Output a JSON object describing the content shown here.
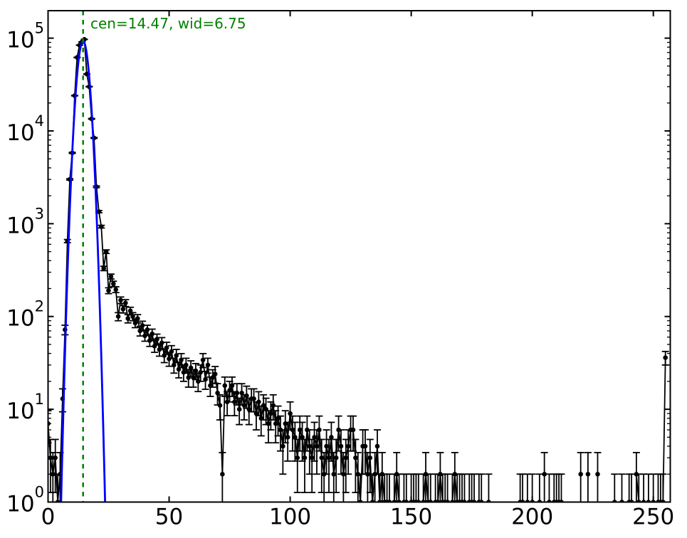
{
  "chart_data": {
    "type": "scatter",
    "title": "",
    "xlabel": "",
    "ylabel": "",
    "grid": false,
    "legend": null,
    "xlim": [
      0,
      257
    ],
    "ylim_log10": [
      0,
      5.296
    ],
    "x_ticks": [
      0,
      50,
      100,
      150,
      200,
      250
    ],
    "x_tick_labels": [
      "0",
      "50",
      "100",
      "150",
      "200",
      "250"
    ],
    "y_tick_base": "10",
    "y_tick_exponents": [
      "0",
      "1",
      "2",
      "3",
      "4",
      "5"
    ],
    "y_minor_mantissas": [
      2,
      3,
      4,
      5,
      6,
      7,
      8,
      9
    ],
    "axis_color": "#000000",
    "marker_color": "#000000",
    "error_model": "poisson_sqrt",
    "points": [
      [
        0,
        7
      ],
      [
        1,
        3
      ],
      [
        2,
        2
      ],
      [
        3,
        3
      ],
      [
        4,
        1
      ],
      [
        5,
        2
      ],
      [
        6,
        13
      ],
      [
        7,
        72
      ],
      [
        8,
        650
      ],
      [
        9,
        3000
      ],
      [
        10,
        5800
      ],
      [
        11,
        24000
      ],
      [
        12,
        62000
      ],
      [
        13,
        84000
      ],
      [
        14,
        91000
      ],
      [
        15,
        97000
      ],
      [
        16,
        41000
      ],
      [
        17,
        30000
      ],
      [
        18,
        13500
      ],
      [
        19,
        8400
      ],
      [
        20,
        2500
      ],
      [
        21,
        1350
      ],
      [
        22,
        930
      ],
      [
        23,
        330
      ],
      [
        24,
        500
      ],
      [
        25,
        190
      ],
      [
        26,
        270
      ],
      [
        27,
        225
      ],
      [
        28,
        195
      ],
      [
        29,
        100
      ],
      [
        30,
        150
      ],
      [
        31,
        120
      ],
      [
        32,
        140
      ],
      [
        33,
        95
      ],
      [
        34,
        115
      ],
      [
        35,
        100
      ],
      [
        36,
        85
      ],
      [
        37,
        95
      ],
      [
        38,
        70
      ],
      [
        39,
        80
      ],
      [
        40,
        62
      ],
      [
        41,
        72
      ],
      [
        42,
        55
      ],
      [
        43,
        65
      ],
      [
        44,
        48
      ],
      [
        45,
        57
      ],
      [
        46,
        44
      ],
      [
        47,
        52
      ],
      [
        48,
        38
      ],
      [
        49,
        46
      ],
      [
        50,
        35
      ],
      [
        51,
        42
      ],
      [
        52,
        30
      ],
      [
        53,
        38
      ],
      [
        54,
        27
      ],
      [
        55,
        34
      ],
      [
        56,
        25
      ],
      [
        57,
        30
      ],
      [
        58,
        22
      ],
      [
        59,
        28
      ],
      [
        60,
        22
      ],
      [
        61,
        26
      ],
      [
        62,
        20
      ],
      [
        63,
        25
      ],
      [
        64,
        34
      ],
      [
        65,
        21
      ],
      [
        66,
        30
      ],
      [
        67,
        18
      ],
      [
        68,
        22
      ],
      [
        69,
        24
      ],
      [
        70,
        15
      ],
      [
        71,
        11
      ],
      [
        72,
        2
      ],
      [
        73,
        18
      ],
      [
        74,
        12
      ],
      [
        75,
        16
      ],
      [
        76,
        18
      ],
      [
        77,
        12
      ],
      [
        78,
        15
      ],
      [
        79,
        10
      ],
      [
        80,
        15
      ],
      [
        81,
        11
      ],
      [
        82,
        14
      ],
      [
        83,
        10
      ],
      [
        84,
        13
      ],
      [
        85,
        13
      ],
      [
        86,
        9
      ],
      [
        87,
        12
      ],
      [
        88,
        8
      ],
      [
        89,
        11
      ],
      [
        90,
        10
      ],
      [
        91,
        7
      ],
      [
        92,
        9
      ],
      [
        93,
        11
      ],
      [
        94,
        7
      ],
      [
        95,
        8
      ],
      [
        96,
        6
      ],
      [
        97,
        4
      ],
      [
        98,
        7
      ],
      [
        99,
        5
      ],
      [
        100,
        9
      ],
      [
        101,
        6
      ],
      [
        102,
        5
      ],
      [
        103,
        3
      ],
      [
        104,
        6
      ],
      [
        105,
        5
      ],
      [
        106,
        3
      ],
      [
        107,
        6
      ],
      [
        108,
        4
      ],
      [
        109,
        3
      ],
      [
        110,
        5
      ],
      [
        111,
        4
      ],
      [
        112,
        6
      ],
      [
        113,
        3
      ],
      [
        114,
        2
      ],
      [
        115,
        4
      ],
      [
        116,
        3
      ],
      [
        117,
        5
      ],
      [
        118,
        2
      ],
      [
        119,
        3
      ],
      [
        120,
        6
      ],
      [
        121,
        4
      ],
      [
        122,
        2
      ],
      [
        123,
        3
      ],
      [
        124,
        4
      ],
      [
        125,
        6
      ],
      [
        126,
        6
      ],
      [
        127,
        3
      ],
      [
        128,
        2
      ],
      [
        129,
        1
      ],
      [
        130,
        4
      ],
      [
        131,
        4
      ],
      [
        132,
        2
      ],
      [
        133,
        3
      ],
      [
        134,
        1
      ],
      [
        135,
        2
      ],
      [
        136,
        4
      ],
      [
        137,
        1
      ],
      [
        138,
        2
      ],
      [
        139,
        1
      ],
      [
        140,
        1
      ],
      [
        141,
        1
      ],
      [
        143,
        1
      ],
      [
        144,
        2
      ],
      [
        145,
        1
      ],
      [
        147,
        1
      ],
      [
        148,
        1
      ],
      [
        150,
        1
      ],
      [
        151,
        1
      ],
      [
        152,
        1
      ],
      [
        153,
        1
      ],
      [
        155,
        1
      ],
      [
        156,
        2
      ],
      [
        157,
        1
      ],
      [
        158,
        1
      ],
      [
        160,
        1
      ],
      [
        161,
        1
      ],
      [
        162,
        2
      ],
      [
        163,
        1
      ],
      [
        164,
        1
      ],
      [
        165,
        1
      ],
      [
        167,
        1
      ],
      [
        168,
        2
      ],
      [
        169,
        1
      ],
      [
        170,
        1
      ],
      [
        171,
        1
      ],
      [
        172,
        1
      ],
      [
        174,
        1
      ],
      [
        175,
        1
      ],
      [
        176,
        1
      ],
      [
        178,
        1
      ],
      [
        179,
        1
      ],
      [
        182,
        1
      ],
      [
        195,
        1
      ],
      [
        196,
        1
      ],
      [
        198,
        1
      ],
      [
        200,
        1
      ],
      [
        203,
        1
      ],
      [
        205,
        2
      ],
      [
        207,
        1
      ],
      [
        209,
        1
      ],
      [
        210,
        1
      ],
      [
        211,
        1
      ],
      [
        212,
        1
      ],
      [
        220,
        2
      ],
      [
        223,
        2
      ],
      [
        227,
        2
      ],
      [
        234,
        1
      ],
      [
        237,
        1
      ],
      [
        240,
        1
      ],
      [
        241,
        1
      ],
      [
        243,
        2
      ],
      [
        244,
        1
      ],
      [
        246,
        1
      ],
      [
        248,
        1
      ],
      [
        250,
        1
      ],
      [
        252,
        1
      ],
      [
        253,
        1
      ],
      [
        254,
        1
      ],
      [
        255,
        36
      ]
    ],
    "fit": {
      "type": "gaussian",
      "amplitude": 93000,
      "center": 14.47,
      "sigma": 1.9,
      "color": "#0000ff"
    },
    "center_line": {
      "x": 14.47,
      "style": "dashed",
      "color": "#008000"
    },
    "annotation": {
      "text": "cen=14.47, wid=6.75",
      "color": "#008000",
      "x": 17.5,
      "y": 175000
    }
  }
}
